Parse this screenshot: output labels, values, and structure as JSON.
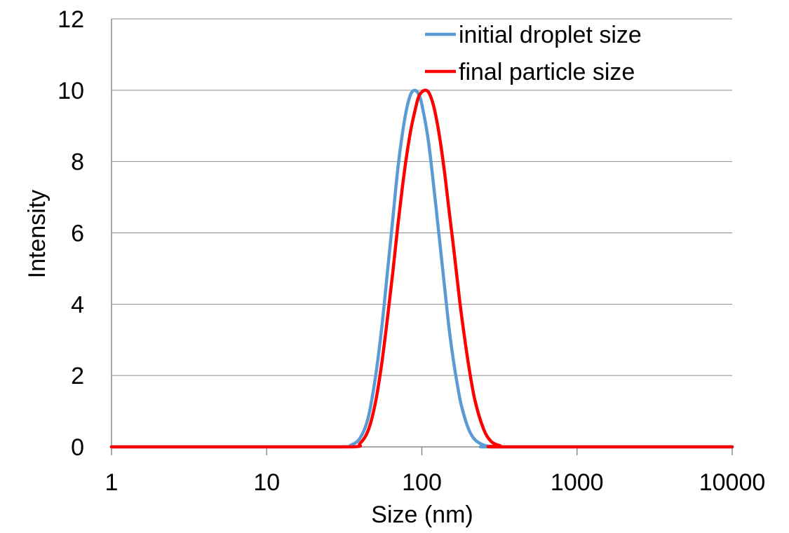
{
  "chart_data": {
    "type": "line",
    "x_scale": "log",
    "xlabel": "Size (nm)",
    "ylabel": "Intensity",
    "xlim": [
      1,
      10000
    ],
    "ylim": [
      0,
      12
    ],
    "x_ticks": [
      1,
      10,
      100,
      1000,
      10000
    ],
    "x_tick_labels": [
      "1",
      "10",
      "100",
      "1000",
      "10000"
    ],
    "y_ticks": [
      0,
      2,
      4,
      6,
      8,
      10,
      12
    ],
    "y_tick_labels": [
      "0",
      "2",
      "4",
      "6",
      "8",
      "10",
      "12"
    ],
    "grid": "horizontal",
    "legend": "top-right",
    "series": [
      {
        "name": "initial droplet size",
        "color": "#5b9bd5",
        "x": [
          1,
          10,
          30,
          35,
          40,
          45,
          50,
          55,
          60,
          65,
          70,
          75,
          80,
          85,
          90,
          95,
          100,
          110,
          120,
          130,
          140,
          150,
          160,
          170,
          180,
          200,
          220,
          250,
          280,
          320,
          10000
        ],
        "y": [
          0,
          0,
          0,
          0.05,
          0.25,
          0.8,
          1.9,
          3.3,
          4.9,
          6.4,
          7.8,
          8.8,
          9.5,
          9.9,
          10.0,
          9.9,
          9.6,
          8.6,
          7.2,
          5.8,
          4.5,
          3.3,
          2.4,
          1.7,
          1.15,
          0.5,
          0.2,
          0.05,
          0.01,
          0,
          0
        ]
      },
      {
        "name": "final particle size",
        "color": "#ff0000",
        "x": [
          1,
          10,
          35,
          40,
          45,
          50,
          55,
          60,
          65,
          70,
          75,
          80,
          85,
          90,
          95,
          100,
          106,
          112,
          120,
          130,
          140,
          150,
          160,
          170,
          180,
          200,
          220,
          250,
          280,
          320,
          350,
          10000
        ],
        "y": [
          0,
          0,
          0,
          0.1,
          0.45,
          1.2,
          2.3,
          3.6,
          4.9,
          6.2,
          7.3,
          8.2,
          8.9,
          9.4,
          9.8,
          9.95,
          10.0,
          9.9,
          9.5,
          8.7,
          7.7,
          6.6,
          5.6,
          4.6,
          3.7,
          2.3,
          1.3,
          0.5,
          0.15,
          0.03,
          0,
          0
        ]
      }
    ]
  }
}
